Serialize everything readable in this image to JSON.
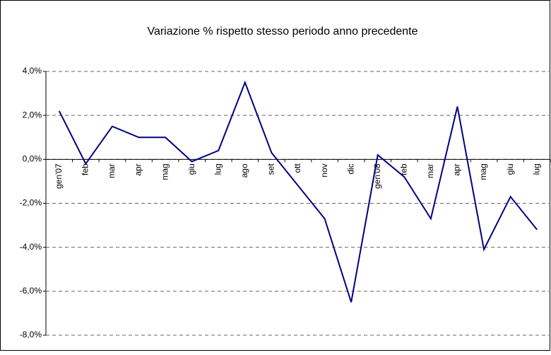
{
  "chart_data": {
    "type": "line",
    "title": "Variazione % rispetto stesso periodo anno precedente",
    "categories": [
      "gen'07",
      "feb",
      "mar",
      "apr",
      "mag",
      "giu",
      "lug",
      "ago",
      "set",
      "ott",
      "nov",
      "dic",
      "gen'08",
      "feb",
      "mar",
      "apr",
      "mag",
      "giu",
      "lug"
    ],
    "values": [
      2.2,
      -0.2,
      1.5,
      1.0,
      1.0,
      -0.1,
      0.4,
      3.5,
      0.3,
      -1.2,
      -2.7,
      -6.5,
      0.2,
      -0.8,
      -2.7,
      2.4,
      -4.1,
      -1.7,
      -3.2
    ],
    "color": "#000080",
    "ylim": [
      -8,
      4
    ],
    "yticks": [
      {
        "value": -8,
        "label": "-8,0%"
      },
      {
        "value": -6,
        "label": "-6,0%"
      },
      {
        "value": -4,
        "label": "-4,0%"
      },
      {
        "value": -2,
        "label": "-2,0%"
      },
      {
        "value": 0,
        "label": "0,0%"
      },
      {
        "value": 2,
        "label": "2,0%"
      },
      {
        "value": 4,
        "label": "4,0%"
      }
    ],
    "grid": true
  }
}
